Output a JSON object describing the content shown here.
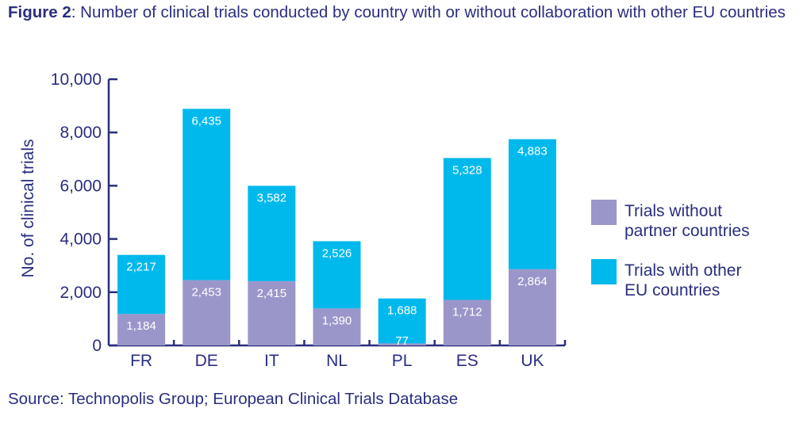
{
  "figure": {
    "label": "Figure 2",
    "caption": ": Number of clinical trials conducted by country with or without collaboration with other EU countries",
    "source": "Source: Technopolis Group; European Clinical Trials Database"
  },
  "colors": {
    "without_partner": "#9b96c9",
    "with_eu": "#00b9ec",
    "text": "#2a2e7e"
  },
  "chart_data": {
    "type": "bar",
    "stacked": true,
    "categories": [
      "FR",
      "DE",
      "IT",
      "NL",
      "PL",
      "ES",
      "UK"
    ],
    "series": [
      {
        "name": "Trials without partner countries",
        "values": [
          1184,
          2453,
          2415,
          1390,
          77,
          1712,
          2864
        ]
      },
      {
        "name": "Trials with other EU countries",
        "values": [
          2217,
          6435,
          3582,
          2526,
          1688,
          5328,
          4883
        ]
      }
    ],
    "value_labels": [
      [
        "1,184",
        "2,453",
        "2,415",
        "1,390",
        "77",
        "1,712",
        "2,864"
      ],
      [
        "2,217",
        "6,435",
        "3,582",
        "2,526",
        "1,688",
        "5,328",
        "4,883"
      ]
    ],
    "ylabel": "No. of clinical trials",
    "ylim": [
      0,
      10000
    ],
    "yticks": [
      0,
      2000,
      4000,
      6000,
      8000,
      10000
    ],
    "ytick_labels": [
      "0",
      "2,000",
      "4,000",
      "6,000",
      "8,000",
      "10,000"
    ],
    "legend": {
      "placement": "right",
      "entries": [
        {
          "line1": "Trials without",
          "line2": "partner countries"
        },
        {
          "line1": "Trials with other",
          "line2": "EU countries"
        }
      ]
    }
  }
}
